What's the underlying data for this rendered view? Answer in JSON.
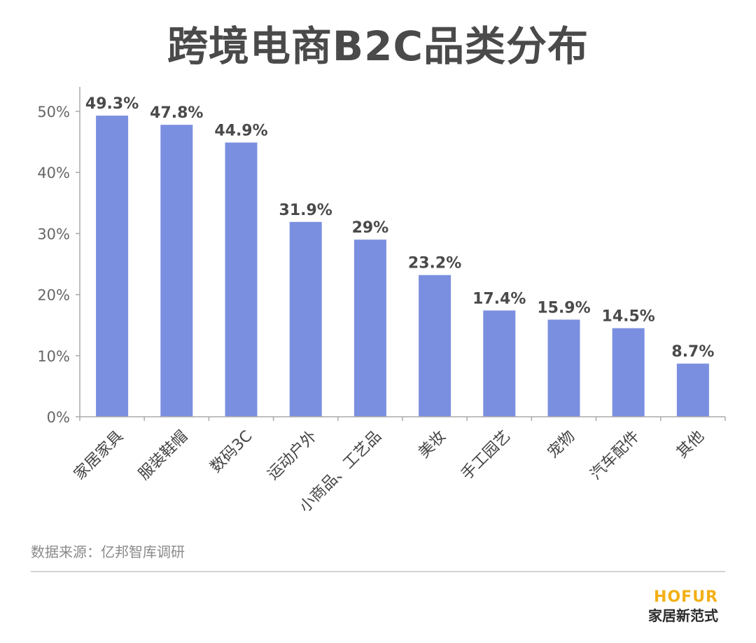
{
  "title": "跨境电商B2C品类分布",
  "source": "数据来源：亿邦智库调研",
  "logo": {
    "brand": "HOFUR",
    "tagline": "家居新范式"
  },
  "colors": {
    "bar": "#7b8fe0",
    "axis": "#aaaaaa",
    "text": "#4a4a4a",
    "brand": "#f2b015"
  },
  "chart_data": {
    "type": "bar",
    "title": "跨境电商B2C品类分布",
    "xlabel": "",
    "ylabel": "",
    "categories": [
      "家居家具",
      "服装鞋帽",
      "数码3C",
      "运动户外",
      "小商品、工艺品",
      "美妆",
      "手工园艺",
      "宠物",
      "汽车配件",
      "其他"
    ],
    "values": [
      49.3,
      47.8,
      44.9,
      31.9,
      29,
      23.2,
      17.4,
      15.9,
      14.5,
      8.7
    ],
    "value_labels": [
      "49.3%",
      "47.8%",
      "44.9%",
      "31.9%",
      "29%",
      "23.2%",
      "17.4%",
      "15.9%",
      "14.5%",
      "8.7%"
    ],
    "yticks": [
      0,
      10,
      20,
      30,
      40,
      50
    ],
    "ytick_labels": [
      "0%",
      "10%",
      "20%",
      "30%",
      "40%",
      "50%"
    ],
    "ylim": [
      0,
      50
    ],
    "grid": false,
    "legend": "none"
  }
}
